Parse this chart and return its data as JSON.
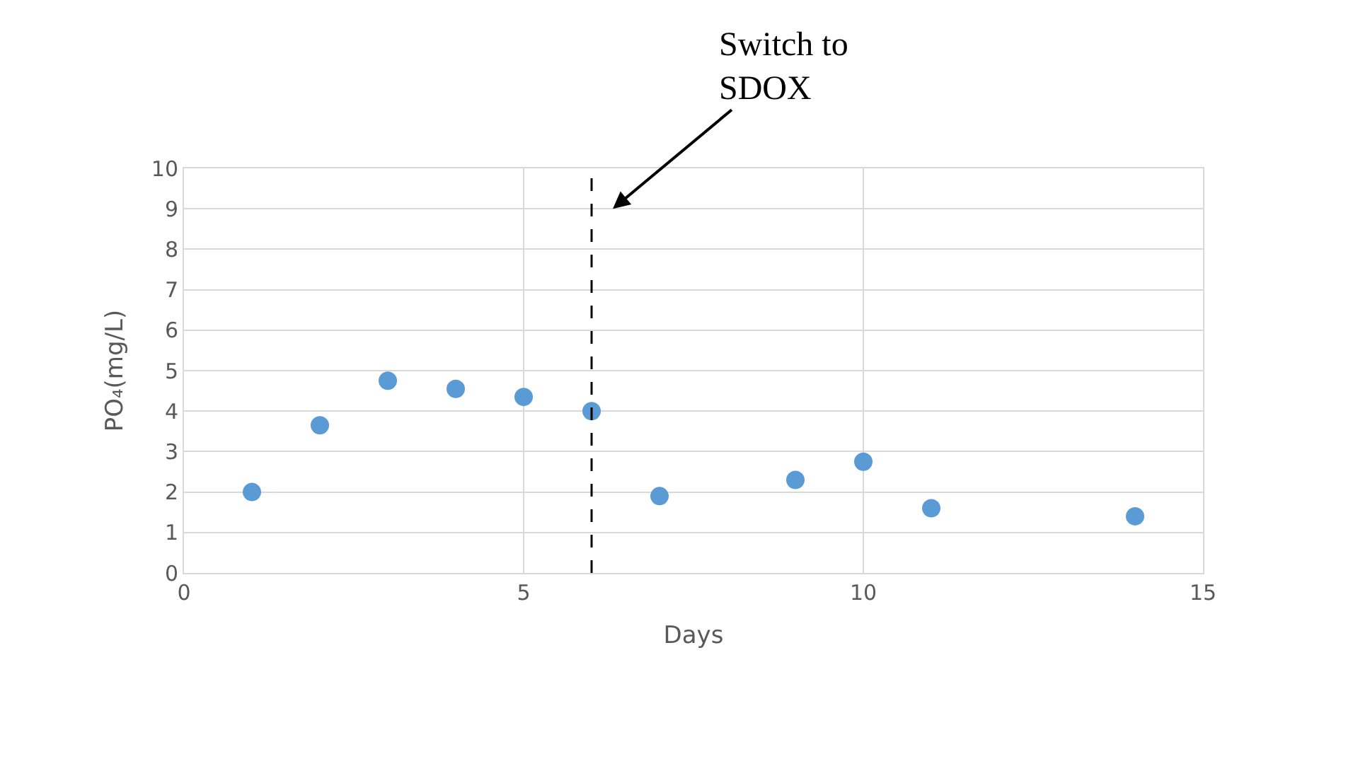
{
  "chart_data": {
    "type": "scatter",
    "xlabel": "Days",
    "ylabel": "PO₄(mg/L)",
    "x": [
      1,
      2,
      3,
      4,
      5,
      6,
      7,
      9,
      10,
      11,
      14
    ],
    "series": [
      {
        "color": "#5b9bd5",
        "values": [
          2.0,
          3.65,
          4.75,
          4.55,
          4.35,
          4.0,
          1.9,
          2.3,
          2.75,
          1.6,
          1.4
        ]
      }
    ],
    "xlim": [
      0,
      15
    ],
    "xticks": [
      0,
      5,
      10,
      15
    ],
    "ylim": [
      0,
      10
    ],
    "yticks": [
      0,
      1,
      2,
      3,
      4,
      5,
      6,
      7,
      8,
      9,
      10
    ],
    "grid": true,
    "marker": "circle",
    "ref_lines": [
      {
        "axis": "x",
        "value": 6,
        "line_style": "dashed",
        "color": "#000000",
        "label": "Switch to SDOX"
      }
    ]
  }
}
